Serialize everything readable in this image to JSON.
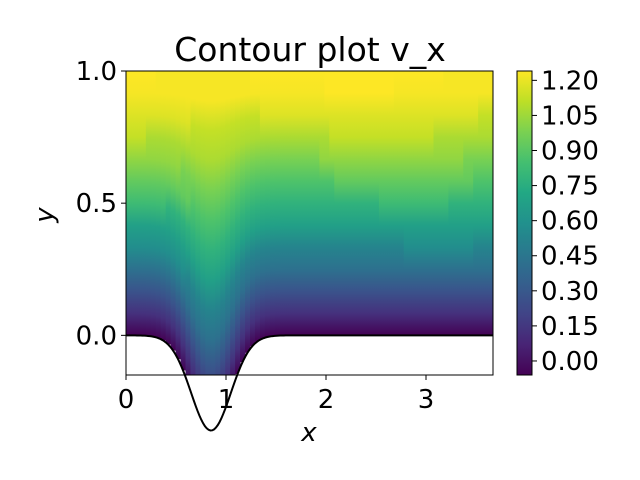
{
  "chart_data": {
    "type": "contour",
    "title": "Contour plot v_x",
    "xlabel": "x",
    "ylabel": "y",
    "xlim": [
      0,
      3.67
    ],
    "ylim": [
      -0.15,
      1.0
    ],
    "x_ticks": [
      {
        "value": 0,
        "label": "0"
      },
      {
        "value": 1,
        "label": "1"
      },
      {
        "value": 2,
        "label": "2"
      },
      {
        "value": 3,
        "label": "3"
      }
    ],
    "y_ticks": [
      {
        "value": 0.0,
        "label": "0.0"
      },
      {
        "value": 0.5,
        "label": "0.5"
      },
      {
        "value": 1.0,
        "label": "1.0"
      }
    ],
    "colorbar": {
      "range": [
        -0.06,
        1.24
      ],
      "colormap": "viridis",
      "ticks": [
        {
          "value": 0.0,
          "label": "0.00"
        },
        {
          "value": 0.15,
          "label": "0.15"
        },
        {
          "value": 0.3,
          "label": "0.30"
        },
        {
          "value": 0.45,
          "label": "0.45"
        },
        {
          "value": 0.6,
          "label": "0.60"
        },
        {
          "value": 0.75,
          "label": "0.75"
        },
        {
          "value": 0.9,
          "label": "0.90"
        },
        {
          "value": 1.05,
          "label": "1.05"
        },
        {
          "value": 1.2,
          "label": "1.20"
        }
      ]
    },
    "boundary": {
      "description": "Gaussian dip in lower wall",
      "center_x": 0.85,
      "depth": 0.36,
      "width": 0.28,
      "baseline_y": 0.0
    },
    "field": {
      "wall_value": -0.06,
      "top_value": 1.24,
      "dip_min_value": -0.05,
      "grid": false
    }
  }
}
